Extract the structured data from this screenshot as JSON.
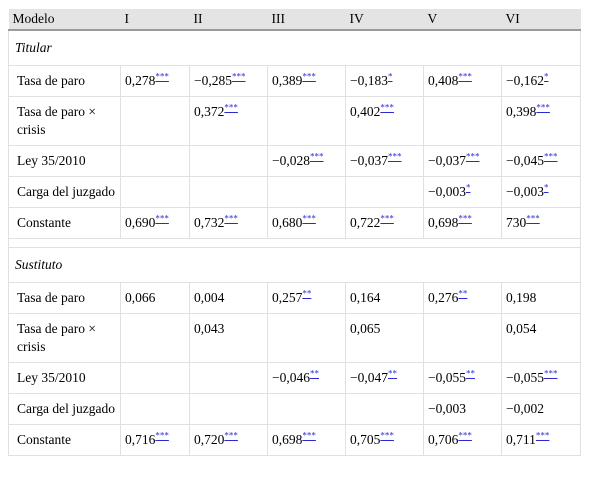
{
  "header": [
    "Modelo",
    "I",
    "II",
    "III",
    "IV",
    "V",
    "VI"
  ],
  "sections": [
    {
      "title": "Titular",
      "rows": [
        {
          "label": "Tasa de paro",
          "cells": [
            [
              "0,278",
              "***"
            ],
            [
              "−0,285",
              "***"
            ],
            [
              "0,389",
              "***"
            ],
            [
              "−0,183",
              "*"
            ],
            [
              "0,408",
              "***"
            ],
            [
              "−0,162",
              "*"
            ]
          ]
        },
        {
          "label": "Tasa de paro × crisis",
          "cells": [
            null,
            [
              "0,372",
              "***"
            ],
            null,
            [
              "0,402",
              "***"
            ],
            null,
            [
              "0,398",
              "***"
            ]
          ]
        },
        {
          "label": "Ley 35/2010",
          "cells": [
            null,
            null,
            [
              "−0,028",
              "***"
            ],
            [
              "−0,037",
              "***"
            ],
            [
              "−0,037",
              "***"
            ],
            [
              "−0,045",
              "***"
            ]
          ]
        },
        {
          "label": "Carga del juzgado",
          "cells": [
            null,
            null,
            null,
            null,
            [
              "−0,003",
              "*"
            ],
            [
              "−0,003",
              "*"
            ]
          ]
        },
        {
          "label": "Constante",
          "cells": [
            [
              "0,690",
              "***"
            ],
            [
              "0,732",
              "***"
            ],
            [
              "0,680",
              "***"
            ],
            [
              "0,722",
              "***"
            ],
            [
              "0,698",
              "***"
            ],
            [
              "730",
              "***"
            ]
          ]
        }
      ]
    },
    {
      "title": "Sustituto",
      "rows": [
        {
          "label": "Tasa de paro",
          "cells": [
            [
              "0,066"
            ],
            [
              "0,004"
            ],
            [
              "0,257",
              "**"
            ],
            [
              "0,164"
            ],
            [
              "0,276",
              "**"
            ],
            [
              "0,198"
            ]
          ]
        },
        {
          "label": "Tasa de paro × crisis",
          "cells": [
            null,
            [
              "0,043"
            ],
            null,
            [
              "0,065"
            ],
            null,
            [
              "0,054"
            ]
          ]
        },
        {
          "label": "Ley 35/2010",
          "cells": [
            null,
            null,
            [
              "−0,046",
              "**"
            ],
            [
              "−0,047",
              "**"
            ],
            [
              "−0,055",
              "**"
            ],
            [
              "−0,055",
              "***"
            ]
          ]
        },
        {
          "label": "Carga del juzgado",
          "cells": [
            null,
            null,
            null,
            null,
            [
              "−0,003"
            ],
            [
              "−0,002"
            ]
          ]
        },
        {
          "label": "Constante",
          "cells": [
            [
              "0,716",
              "***"
            ],
            [
              "0,720",
              "***"
            ],
            [
              "0,698",
              "***"
            ],
            [
              "0,705",
              "***"
            ],
            [
              "0,706",
              "***"
            ],
            [
              "0,711",
              "***"
            ]
          ]
        }
      ]
    }
  ]
}
